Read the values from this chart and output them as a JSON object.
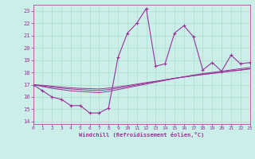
{
  "xlabel": "Windchill (Refroidissement éolien,°C)",
  "background_color": "#cceee8",
  "grid_color": "#aaddcc",
  "line_color": "#993399",
  "x_data": [
    0,
    1,
    2,
    3,
    4,
    5,
    6,
    7,
    8,
    9,
    10,
    11,
    12,
    13,
    14,
    15,
    16,
    17,
    18,
    19,
    20,
    21,
    22,
    23
  ],
  "y_main": [
    17.0,
    16.5,
    16.0,
    15.8,
    15.3,
    15.3,
    14.7,
    14.7,
    15.1,
    19.2,
    21.2,
    22.0,
    23.2,
    18.5,
    18.7,
    21.2,
    21.8,
    20.9,
    18.2,
    18.8,
    18.1,
    19.4,
    18.7,
    18.8
  ],
  "y_line1": [
    17.0,
    16.85,
    16.7,
    16.6,
    16.5,
    16.45,
    16.4,
    16.35,
    16.45,
    16.6,
    16.75,
    16.9,
    17.05,
    17.2,
    17.35,
    17.5,
    17.65,
    17.78,
    17.9,
    18.0,
    18.1,
    18.2,
    18.3,
    18.4
  ],
  "y_line2": [
    17.0,
    16.9,
    16.8,
    16.72,
    16.65,
    16.6,
    16.55,
    16.52,
    16.6,
    16.72,
    16.85,
    16.98,
    17.12,
    17.25,
    17.38,
    17.52,
    17.63,
    17.74,
    17.84,
    17.93,
    18.02,
    18.12,
    18.2,
    18.3
  ],
  "y_line3": [
    17.0,
    16.95,
    16.88,
    16.8,
    16.75,
    16.7,
    16.68,
    16.65,
    16.72,
    16.82,
    16.93,
    17.05,
    17.17,
    17.28,
    17.4,
    17.52,
    17.62,
    17.72,
    17.82,
    17.91,
    18.0,
    18.1,
    18.18,
    18.28
  ],
  "xlim": [
    0,
    23
  ],
  "ylim": [
    13.8,
    23.5
  ],
  "yticks": [
    14,
    15,
    16,
    17,
    18,
    19,
    20,
    21,
    22,
    23
  ],
  "xticks": [
    0,
    1,
    2,
    3,
    4,
    5,
    6,
    7,
    8,
    9,
    10,
    11,
    12,
    13,
    14,
    15,
    16,
    17,
    18,
    19,
    20,
    21,
    22,
    23
  ]
}
